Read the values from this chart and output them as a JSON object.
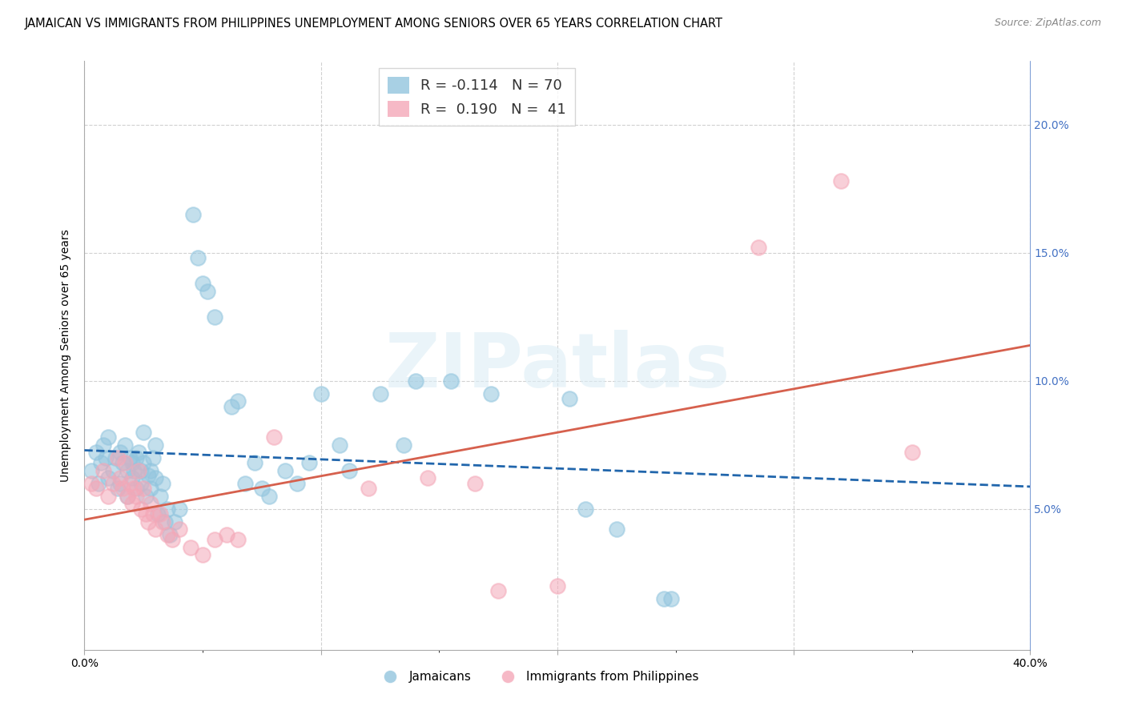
{
  "title": "JAMAICAN VS IMMIGRANTS FROM PHILIPPINES UNEMPLOYMENT AMONG SENIORS OVER 65 YEARS CORRELATION CHART",
  "source": "Source: ZipAtlas.com",
  "ylabel": "Unemployment Among Seniors over 65 years",
  "xlim": [
    0.0,
    0.4
  ],
  "ylim": [
    -0.005,
    0.225
  ],
  "watermark": "ZIPatlas",
  "legend_blue_R": "-0.114",
  "legend_blue_N": "70",
  "legend_pink_R": "0.190",
  "legend_pink_N": "41",
  "blue_color": "#92c5de",
  "pink_color": "#f4a8b8",
  "blue_line_color": "#2166ac",
  "pink_line_color": "#d6604d",
  "blue_scatter": [
    [
      0.003,
      0.065
    ],
    [
      0.005,
      0.072
    ],
    [
      0.006,
      0.06
    ],
    [
      0.007,
      0.068
    ],
    [
      0.008,
      0.075
    ],
    [
      0.009,
      0.07
    ],
    [
      0.01,
      0.062
    ],
    [
      0.01,
      0.078
    ],
    [
      0.012,
      0.065
    ],
    [
      0.013,
      0.07
    ],
    [
      0.014,
      0.058
    ],
    [
      0.015,
      0.072
    ],
    [
      0.015,
      0.06
    ],
    [
      0.016,
      0.068
    ],
    [
      0.017,
      0.075
    ],
    [
      0.018,
      0.065
    ],
    [
      0.018,
      0.055
    ],
    [
      0.019,
      0.07
    ],
    [
      0.02,
      0.068
    ],
    [
      0.02,
      0.062
    ],
    [
      0.021,
      0.065
    ],
    [
      0.022,
      0.07
    ],
    [
      0.022,
      0.058
    ],
    [
      0.023,
      0.072
    ],
    [
      0.024,
      0.065
    ],
    [
      0.024,
      0.06
    ],
    [
      0.025,
      0.08
    ],
    [
      0.025,
      0.068
    ],
    [
      0.026,
      0.055
    ],
    [
      0.027,
      0.063
    ],
    [
      0.028,
      0.058
    ],
    [
      0.028,
      0.065
    ],
    [
      0.029,
      0.07
    ],
    [
      0.03,
      0.062
    ],
    [
      0.03,
      0.075
    ],
    [
      0.031,
      0.048
    ],
    [
      0.032,
      0.055
    ],
    [
      0.033,
      0.06
    ],
    [
      0.034,
      0.045
    ],
    [
      0.035,
      0.05
    ],
    [
      0.036,
      0.04
    ],
    [
      0.038,
      0.045
    ],
    [
      0.04,
      0.05
    ],
    [
      0.046,
      0.165
    ],
    [
      0.048,
      0.148
    ],
    [
      0.05,
      0.138
    ],
    [
      0.052,
      0.135
    ],
    [
      0.055,
      0.125
    ],
    [
      0.062,
      0.09
    ],
    [
      0.065,
      0.092
    ],
    [
      0.068,
      0.06
    ],
    [
      0.072,
      0.068
    ],
    [
      0.075,
      0.058
    ],
    [
      0.078,
      0.055
    ],
    [
      0.085,
      0.065
    ],
    [
      0.09,
      0.06
    ],
    [
      0.095,
      0.068
    ],
    [
      0.1,
      0.095
    ],
    [
      0.108,
      0.075
    ],
    [
      0.112,
      0.065
    ],
    [
      0.125,
      0.095
    ],
    [
      0.135,
      0.075
    ],
    [
      0.14,
      0.1
    ],
    [
      0.155,
      0.1
    ],
    [
      0.172,
      0.095
    ],
    [
      0.205,
      0.093
    ],
    [
      0.212,
      0.05
    ],
    [
      0.225,
      0.042
    ],
    [
      0.245,
      0.015
    ],
    [
      0.248,
      0.015
    ]
  ],
  "pink_scatter": [
    [
      0.003,
      0.06
    ],
    [
      0.005,
      0.058
    ],
    [
      0.008,
      0.065
    ],
    [
      0.01,
      0.055
    ],
    [
      0.012,
      0.06
    ],
    [
      0.014,
      0.07
    ],
    [
      0.015,
      0.062
    ],
    [
      0.016,
      0.058
    ],
    [
      0.017,
      0.068
    ],
    [
      0.018,
      0.055
    ],
    [
      0.019,
      0.06
    ],
    [
      0.02,
      0.052
    ],
    [
      0.021,
      0.058
    ],
    [
      0.022,
      0.055
    ],
    [
      0.023,
      0.065
    ],
    [
      0.024,
      0.05
    ],
    [
      0.025,
      0.058
    ],
    [
      0.026,
      0.048
    ],
    [
      0.027,
      0.045
    ],
    [
      0.028,
      0.052
    ],
    [
      0.029,
      0.048
    ],
    [
      0.03,
      0.042
    ],
    [
      0.032,
      0.048
    ],
    [
      0.033,
      0.045
    ],
    [
      0.035,
      0.04
    ],
    [
      0.037,
      0.038
    ],
    [
      0.04,
      0.042
    ],
    [
      0.045,
      0.035
    ],
    [
      0.05,
      0.032
    ],
    [
      0.055,
      0.038
    ],
    [
      0.06,
      0.04
    ],
    [
      0.065,
      0.038
    ],
    [
      0.08,
      0.078
    ],
    [
      0.12,
      0.058
    ],
    [
      0.145,
      0.062
    ],
    [
      0.165,
      0.06
    ],
    [
      0.175,
      0.018
    ],
    [
      0.2,
      0.02
    ],
    [
      0.285,
      0.152
    ],
    [
      0.32,
      0.178
    ],
    [
      0.35,
      0.072
    ]
  ],
  "title_fontsize": 10.5,
  "axis_fontsize": 10,
  "tick_fontsize": 10,
  "right_axis_color": "#4472c4",
  "background_color": "#ffffff"
}
